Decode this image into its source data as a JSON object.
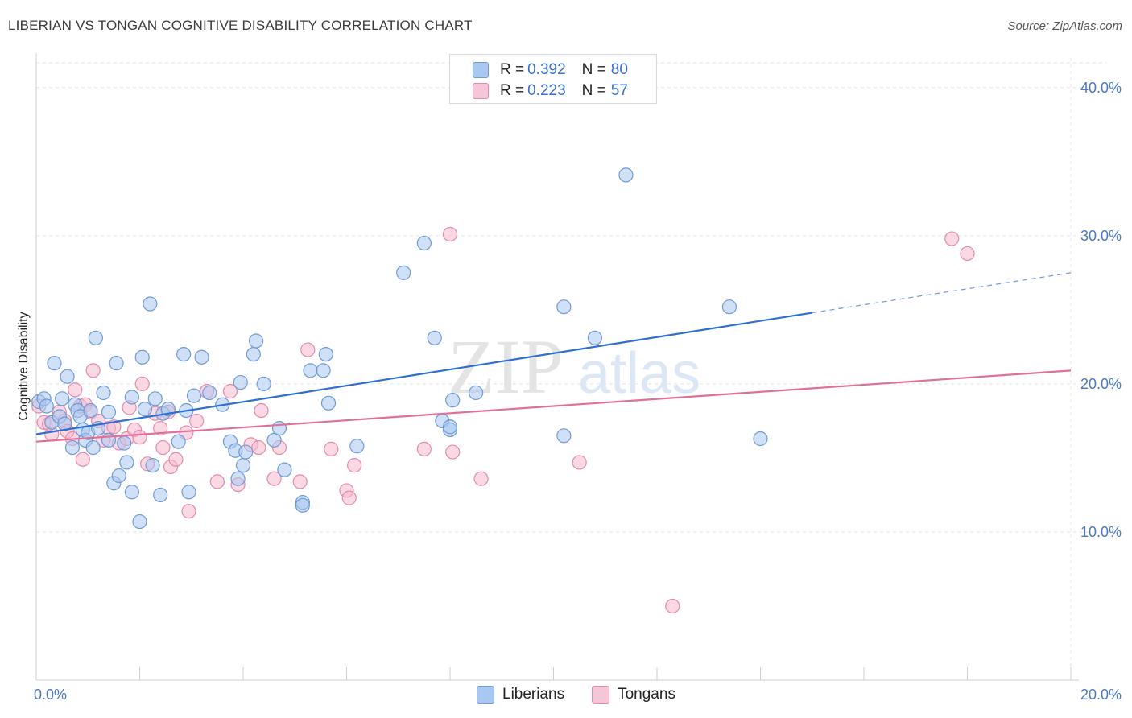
{
  "title": "LIBERIAN VS TONGAN COGNITIVE DISABILITY CORRELATION CHART",
  "source": "Source: ZipAtlas.com",
  "watermark": {
    "zip": "ZIP",
    "atlas": "atlas"
  },
  "legend": {
    "rows": [
      {
        "r_label": "R = ",
        "r_value": "0.392",
        "n_label": "N = ",
        "n_value": "80"
      },
      {
        "r_label": "R = ",
        "r_value": "0.223",
        "n_label": "N = ",
        "n_value": "57"
      }
    ]
  },
  "colors": {
    "liberians_fill": "#a9c8f0",
    "liberians_stroke": "#6f9ad6",
    "liberians_line": "#2f6fd0",
    "tongans_fill": "#f5b9cf",
    "tongans_stroke": "#e58aab",
    "tongans_line": "#e0709a",
    "tick_text": "#4a78c8",
    "grid": "#e3e3e3"
  },
  "chart_data": {
    "type": "scatter",
    "xlabel": "",
    "ylabel": "Cognitive Disability",
    "xlim": [
      0,
      20
    ],
    "ylim": [
      0,
      42
    ],
    "x_tick_labels": [
      {
        "value": 0,
        "label": "0.0%"
      },
      {
        "value": 20,
        "label": "20.0%"
      }
    ],
    "y_tick_labels": [
      {
        "value": 10,
        "label": "10.0%"
      },
      {
        "value": 20,
        "label": "20.0%"
      },
      {
        "value": 30,
        "label": "30.0%"
      },
      {
        "value": 40,
        "label": "40.0%"
      }
    ],
    "grid": true,
    "legend_position": "top-center",
    "series": [
      {
        "name": "Liberians",
        "trend": {
          "x0": 0,
          "y0": 16.6,
          "x1": 15.0,
          "y1": 24.8,
          "dashed_to_x": 20,
          "dashed_to_y": 27.5
        },
        "points": [
          [
            0.05,
            18.8
          ],
          [
            0.15,
            19.0
          ],
          [
            0.2,
            18.5
          ],
          [
            0.3,
            17.4
          ],
          [
            0.35,
            21.4
          ],
          [
            0.45,
            17.8
          ],
          [
            0.5,
            19.0
          ],
          [
            0.55,
            17.3
          ],
          [
            0.6,
            20.5
          ],
          [
            0.7,
            15.7
          ],
          [
            0.75,
            18.6
          ],
          [
            0.8,
            18.2
          ],
          [
            0.85,
            17.8
          ],
          [
            0.9,
            16.9
          ],
          [
            0.95,
            16.2
          ],
          [
            1.0,
            16.7
          ],
          [
            1.05,
            18.2
          ],
          [
            1.1,
            15.7
          ],
          [
            1.15,
            23.1
          ],
          [
            1.2,
            17.0
          ],
          [
            1.3,
            19.4
          ],
          [
            1.4,
            16.2
          ],
          [
            1.4,
            18.1
          ],
          [
            1.5,
            13.3
          ],
          [
            1.55,
            21.4
          ],
          [
            1.6,
            13.8
          ],
          [
            1.7,
            16.0
          ],
          [
            1.75,
            14.7
          ],
          [
            1.85,
            19.1
          ],
          [
            1.85,
            12.7
          ],
          [
            2.0,
            10.7
          ],
          [
            2.05,
            21.8
          ],
          [
            2.1,
            18.3
          ],
          [
            2.2,
            25.4
          ],
          [
            2.25,
            14.5
          ],
          [
            2.3,
            19.0
          ],
          [
            2.4,
            12.5
          ],
          [
            2.45,
            18.0
          ],
          [
            2.55,
            18.3
          ],
          [
            2.75,
            16.1
          ],
          [
            2.85,
            22.0
          ],
          [
            2.9,
            18.2
          ],
          [
            2.95,
            12.7
          ],
          [
            3.05,
            19.2
          ],
          [
            3.2,
            21.8
          ],
          [
            3.35,
            19.4
          ],
          [
            3.6,
            18.6
          ],
          [
            3.75,
            16.1
          ],
          [
            3.85,
            15.5
          ],
          [
            3.9,
            13.6
          ],
          [
            3.95,
            20.1
          ],
          [
            4.0,
            14.5
          ],
          [
            4.05,
            15.4
          ],
          [
            4.2,
            22.0
          ],
          [
            4.25,
            22.9
          ],
          [
            4.4,
            20.0
          ],
          [
            4.6,
            16.2
          ],
          [
            4.7,
            17.0
          ],
          [
            4.8,
            14.2
          ],
          [
            5.15,
            12.0
          ],
          [
            5.15,
            11.8
          ],
          [
            5.3,
            20.9
          ],
          [
            5.55,
            20.9
          ],
          [
            5.6,
            22.0
          ],
          [
            5.65,
            18.7
          ],
          [
            6.2,
            15.8
          ],
          [
            7.1,
            27.5
          ],
          [
            7.5,
            29.5
          ],
          [
            7.7,
            23.1
          ],
          [
            7.85,
            17.5
          ],
          [
            8.0,
            16.9
          ],
          [
            8.0,
            17.1
          ],
          [
            8.05,
            18.9
          ],
          [
            8.5,
            19.4
          ],
          [
            10.2,
            16.5
          ],
          [
            10.2,
            25.2
          ],
          [
            10.8,
            23.1
          ],
          [
            11.4,
            34.1
          ],
          [
            13.4,
            25.2
          ],
          [
            14.0,
            16.3
          ]
        ]
      },
      {
        "name": "Tongans",
        "trend": {
          "x0": 0,
          "y0": 16.1,
          "x1": 20,
          "y1": 20.9
        },
        "points": [
          [
            0.05,
            18.5
          ],
          [
            0.15,
            17.4
          ],
          [
            0.25,
            17.3
          ],
          [
            0.3,
            16.6
          ],
          [
            0.45,
            18.1
          ],
          [
            0.55,
            17.5
          ],
          [
            0.6,
            16.8
          ],
          [
            0.7,
            16.3
          ],
          [
            0.75,
            19.6
          ],
          [
            0.85,
            18.5
          ],
          [
            0.9,
            14.9
          ],
          [
            0.95,
            18.6
          ],
          [
            1.05,
            18.1
          ],
          [
            1.1,
            20.9
          ],
          [
            1.2,
            17.5
          ],
          [
            1.3,
            16.2
          ],
          [
            1.4,
            17.0
          ],
          [
            1.5,
            17.1
          ],
          [
            1.6,
            16.0
          ],
          [
            1.75,
            16.3
          ],
          [
            1.8,
            18.4
          ],
          [
            1.9,
            16.9
          ],
          [
            2.0,
            16.4
          ],
          [
            2.05,
            20.0
          ],
          [
            2.15,
            14.6
          ],
          [
            2.3,
            18.0
          ],
          [
            2.4,
            17.0
          ],
          [
            2.45,
            15.7
          ],
          [
            2.55,
            18.1
          ],
          [
            2.6,
            14.4
          ],
          [
            2.7,
            14.9
          ],
          [
            2.9,
            16.7
          ],
          [
            2.95,
            11.4
          ],
          [
            3.1,
            17.5
          ],
          [
            3.3,
            19.5
          ],
          [
            3.5,
            13.4
          ],
          [
            3.75,
            19.5
          ],
          [
            3.9,
            13.2
          ],
          [
            4.15,
            15.9
          ],
          [
            4.3,
            15.7
          ],
          [
            4.35,
            18.2
          ],
          [
            4.6,
            13.6
          ],
          [
            4.7,
            15.7
          ],
          [
            5.1,
            13.4
          ],
          [
            5.25,
            22.3
          ],
          [
            5.7,
            15.6
          ],
          [
            6.0,
            12.8
          ],
          [
            6.05,
            12.3
          ],
          [
            6.15,
            14.5
          ],
          [
            7.5,
            15.6
          ],
          [
            8.0,
            30.1
          ],
          [
            8.05,
            15.4
          ],
          [
            8.6,
            13.6
          ],
          [
            10.5,
            14.7
          ],
          [
            12.3,
            5.0
          ],
          [
            17.7,
            29.8
          ],
          [
            18.0,
            28.8
          ]
        ]
      }
    ]
  },
  "bottom_legend": [
    {
      "label": "Liberians"
    },
    {
      "label": "Tongans"
    }
  ]
}
